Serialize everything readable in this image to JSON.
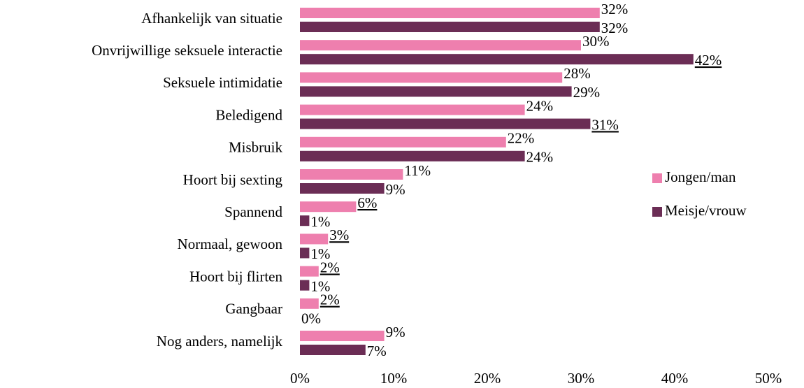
{
  "chart_data": {
    "type": "barh",
    "categories": [
      "Afhankelijk van situatie",
      "Onvrijwillige seksuele interactie",
      "Seksuele intimidatie",
      "Beledigend",
      "Misbruik",
      "Hoort bij sexting",
      "Spannend",
      "Normaal, gewoon",
      "Hoort bij flirten",
      "Gangbaar",
      "Nog anders, namelijk"
    ],
    "series": [
      {
        "name": "Jongen/man",
        "color": "#ee7fae",
        "values": [
          32,
          30,
          28,
          24,
          22,
          11,
          6,
          3,
          2,
          2,
          9
        ],
        "value_labels": [
          "32%",
          "30%",
          "28%",
          "24%",
          "22%",
          "11%",
          "6%",
          "3%",
          "2%",
          "2%",
          "9%"
        ],
        "underline": [
          false,
          false,
          false,
          false,
          false,
          false,
          true,
          true,
          true,
          true,
          false
        ]
      },
      {
        "name": "Meisje/vrouw",
        "color": "#6b2d55",
        "values": [
          32,
          42,
          29,
          31,
          24,
          9,
          1,
          1,
          1,
          0,
          7
        ],
        "value_labels": [
          "32%",
          "42%",
          "29%",
          "31%",
          "24%",
          "9%",
          "1%",
          "1%",
          "1%",
          "0%",
          "7%"
        ],
        "underline": [
          false,
          true,
          false,
          true,
          false,
          false,
          false,
          false,
          false,
          false,
          false
        ]
      }
    ],
    "xlim": [
      0,
      50
    ],
    "xticks": [
      {
        "value": 0,
        "label": "0%"
      },
      {
        "value": 10,
        "label": "10%"
      },
      {
        "value": 20,
        "label": "20%"
      },
      {
        "value": 30,
        "label": "30%"
      },
      {
        "value": 40,
        "label": "40%"
      },
      {
        "value": 50,
        "label": "50%"
      }
    ],
    "legend": "right",
    "grid": false
  }
}
